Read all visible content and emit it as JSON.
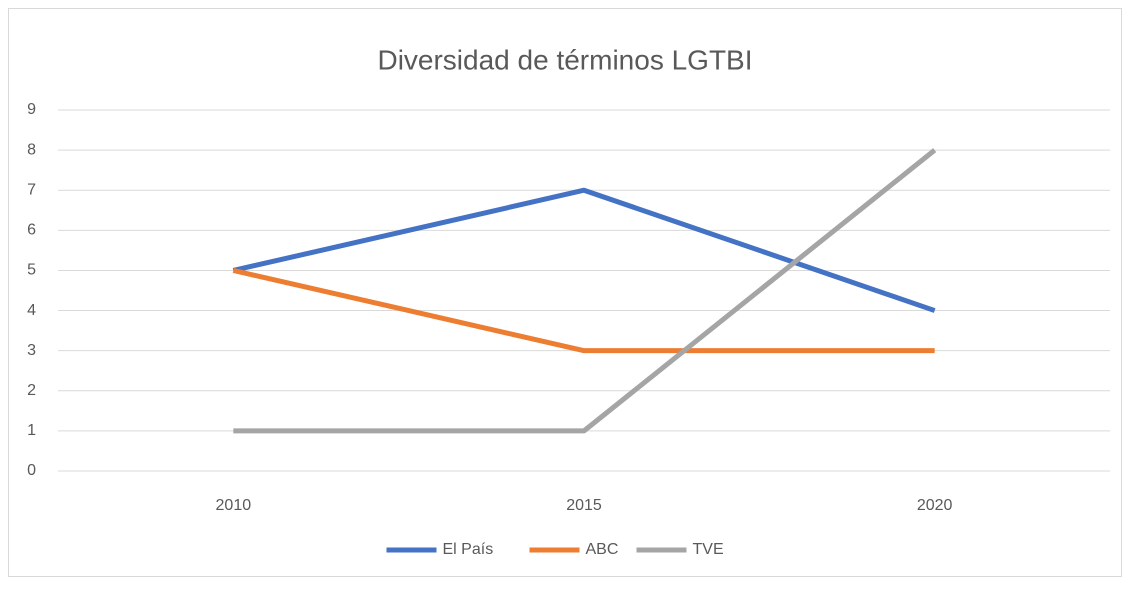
{
  "chart_data": {
    "type": "line",
    "title": "Diversidad de términos LGTBI",
    "categories": [
      "2010",
      "2015",
      "2020"
    ],
    "series": [
      {
        "name": "El País",
        "color": "#4472c4",
        "values": [
          5,
          7,
          4
        ]
      },
      {
        "name": "ABC",
        "color": "#ed7d31",
        "values": [
          5,
          3,
          3
        ]
      },
      {
        "name": "TVE",
        "color": "#a5a5a5",
        "values": [
          1,
          1,
          8
        ]
      }
    ],
    "ylim": [
      0,
      9
    ],
    "yticks": [
      0,
      1,
      2,
      3,
      4,
      5,
      6,
      7,
      8,
      9
    ],
    "grid": true,
    "legend": "bottom"
  }
}
